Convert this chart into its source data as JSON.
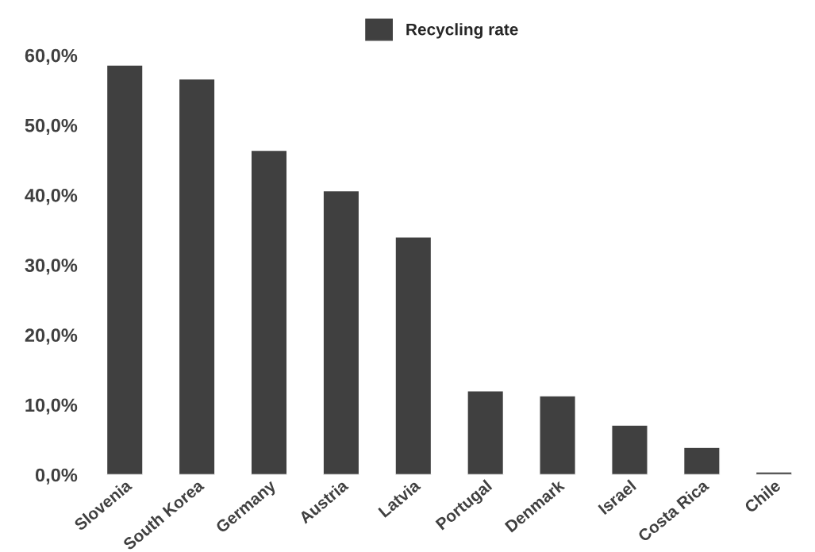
{
  "chart_data": {
    "type": "bar",
    "categories": [
      "Slovenia",
      "South Korea",
      "Germany",
      "Austria",
      "Latvia",
      "Portugal",
      "Denmark",
      "Israel",
      "Costa Rica",
      "Chile"
    ],
    "series": [
      {
        "name": "Recycling rate",
        "color": "#404040",
        "values": [
          58.6,
          56.6,
          46.4,
          40.6,
          34.0,
          12.0,
          11.3,
          7.1,
          3.9,
          0.4
        ]
      }
    ],
    "ylim": [
      0,
      60
    ],
    "yticks": [
      {
        "value": 0,
        "label": "0,0%"
      },
      {
        "value": 10,
        "label": "10,0%"
      },
      {
        "value": 20,
        "label": "20,0%"
      },
      {
        "value": 30,
        "label": "30,0%"
      },
      {
        "value": 40,
        "label": "40,0%"
      },
      {
        "value": 50,
        "label": "50,0%"
      },
      {
        "value": 60,
        "label": "60,0%"
      }
    ],
    "grid": false,
    "legend": "top"
  }
}
